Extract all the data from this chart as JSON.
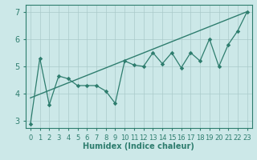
{
  "xlabel": "Humidex (Indice chaleur)",
  "xlim": [
    -0.5,
    23.5
  ],
  "ylim": [
    2.75,
    7.25
  ],
  "yticks": [
    3,
    4,
    5,
    6,
    7
  ],
  "xticks": [
    0,
    1,
    2,
    3,
    4,
    5,
    6,
    7,
    8,
    9,
    10,
    11,
    12,
    13,
    14,
    15,
    16,
    17,
    18,
    19,
    20,
    21,
    22,
    23
  ],
  "bg_color": "#cce8e8",
  "grid_color": "#aacaca",
  "line_color": "#2e7d6e",
  "data_x": [
    0,
    1,
    2,
    3,
    4,
    5,
    6,
    7,
    8,
    9,
    10,
    11,
    12,
    13,
    14,
    15,
    16,
    17,
    18,
    19,
    20,
    21,
    22,
    23
  ],
  "data_y": [
    2.9,
    5.3,
    3.6,
    4.65,
    4.55,
    4.3,
    4.3,
    4.3,
    4.1,
    3.65,
    5.2,
    5.05,
    5.0,
    5.5,
    5.1,
    5.5,
    4.95,
    5.5,
    5.2,
    6.0,
    5.0,
    5.8,
    6.3,
    7.0
  ],
  "trend_x": [
    0,
    23
  ],
  "trend_y": [
    3.85,
    7.0
  ],
  "xlabel_fontsize": 7,
  "tick_fontsize": 6
}
